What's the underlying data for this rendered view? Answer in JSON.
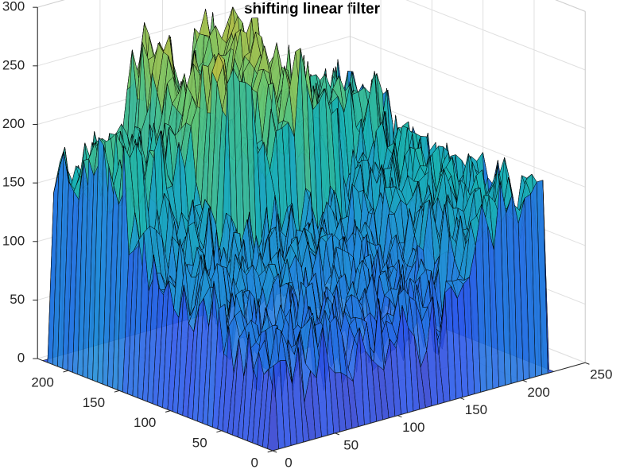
{
  "chart_data": {
    "type": "surface",
    "title": "shifting linear filter",
    "xlabel": "",
    "ylabel": "",
    "zlabel": "",
    "grid": true,
    "colormap": "parula",
    "edge_color": "#000000",
    "x_axis": {
      "ticks": [
        0,
        50,
        100,
        150,
        200,
        250
      ],
      "lim": [
        0,
        250
      ]
    },
    "y_axis": {
      "ticks": [
        0,
        50,
        100,
        150,
        200
      ],
      "lim": [
        0,
        230
      ]
    },
    "z_axis": {
      "ticks": [
        0,
        50,
        100,
        150,
        200,
        250,
        300
      ],
      "lim": [
        0,
        300
      ]
    },
    "data_extent": {
      "x": [
        0,
        225
      ],
      "y": [
        0,
        225
      ]
    },
    "surface_profile": {
      "description_values": "approximate noisy height field, z in data units",
      "edge_columns_zero": true,
      "back_plateau_z": 180,
      "front_valley_z": 60,
      "right_ridge_z": 150,
      "peak_z": 300
    }
  }
}
